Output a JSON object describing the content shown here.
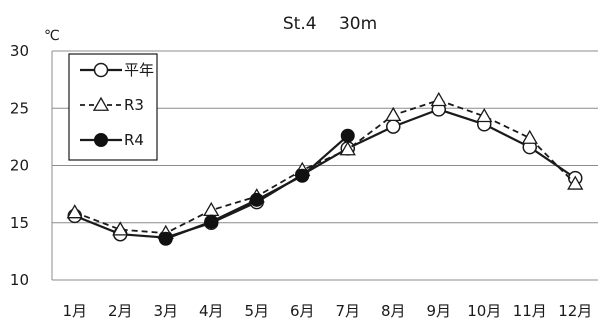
{
  "chart_data": {
    "type": "line",
    "title": "St.4　 30m",
    "ylabel": "℃",
    "xlabel": "",
    "categories": [
      "1月",
      "2月",
      "3月",
      "4月",
      "5月",
      "6月",
      "7月",
      "8月",
      "9月",
      "10月",
      "11月",
      "12月"
    ],
    "ylim": [
      10,
      30
    ],
    "yticks": [
      10,
      15,
      20,
      25,
      30
    ],
    "grid": true,
    "legend_position": "top-left",
    "series": [
      {
        "name": "平年",
        "marker": "open-circle",
        "line": "solid",
        "values": [
          15.6,
          14.0,
          13.7,
          15.0,
          16.8,
          19.2,
          21.5,
          23.4,
          24.9,
          23.6,
          21.6,
          18.9
        ]
      },
      {
        "name": "R3",
        "marker": "open-triangle",
        "line": "dashed",
        "values": [
          15.9,
          14.4,
          14.1,
          16.1,
          17.3,
          19.6,
          21.4,
          24.4,
          25.7,
          24.3,
          22.4,
          18.4
        ]
      },
      {
        "name": "R4",
        "marker": "filled-circle",
        "line": "solid",
        "values": [
          null,
          null,
          13.6,
          15.1,
          17.0,
          19.1,
          22.6,
          null,
          null,
          null,
          null,
          null
        ]
      }
    ]
  }
}
